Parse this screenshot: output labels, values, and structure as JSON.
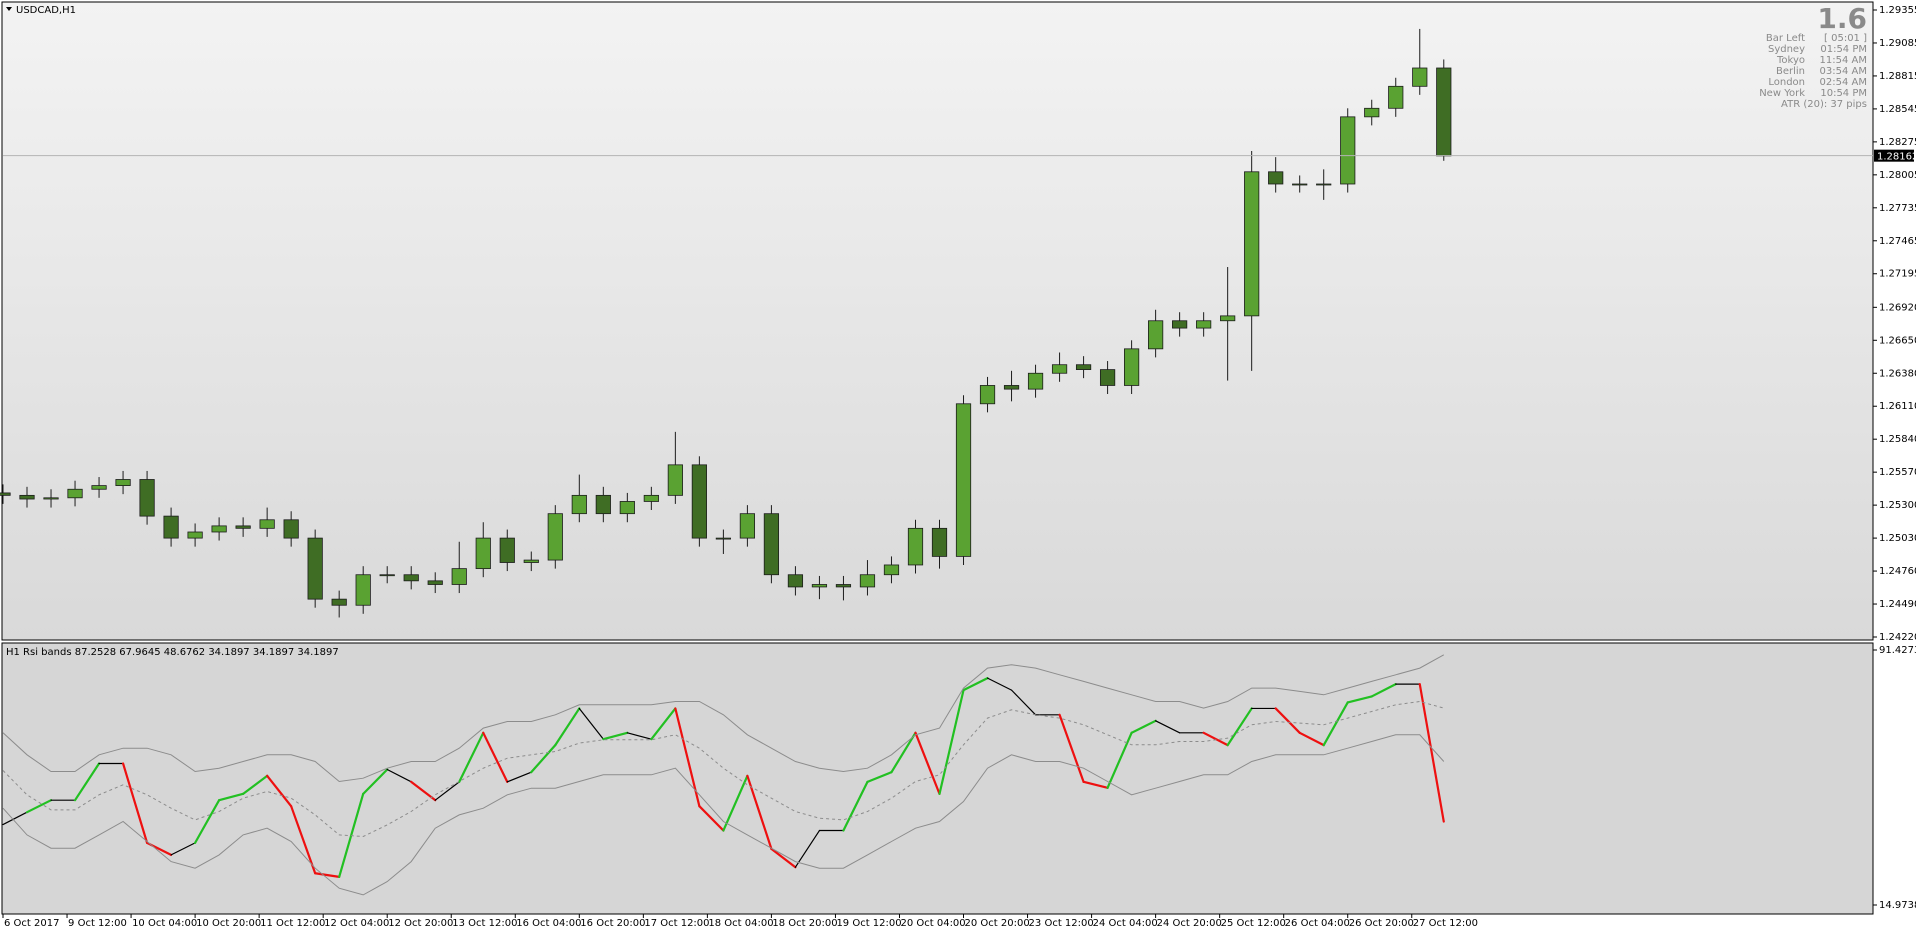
{
  "chart_data": [
    {
      "type": "candlestick",
      "title": "USDCAD,H1",
      "x": [
        0,
        6,
        12,
        18,
        24,
        30,
        36,
        42,
        48,
        54,
        60,
        66,
        72,
        78,
        84,
        90,
        96,
        102,
        108,
        114,
        120,
        126,
        132,
        138,
        144,
        150,
        156,
        162,
        168,
        174,
        180,
        186,
        192,
        198,
        204,
        210,
        216,
        222,
        228,
        234,
        240,
        246,
        252,
        258,
        264,
        270,
        276,
        282,
        288,
        294,
        300,
        306,
        312,
        318,
        324,
        330,
        336,
        342,
        348,
        354,
        360
      ],
      "open": [
        1.254,
        1.2538,
        1.2535,
        1.2536,
        1.2543,
        1.2546,
        1.2551,
        1.2521,
        1.2503,
        1.2508,
        1.2513,
        1.2511,
        1.2518,
        1.2503,
        1.2453,
        1.2448,
        1.2473,
        1.2473,
        1.2468,
        1.2465,
        1.2478,
        1.2503,
        1.2483,
        1.2485,
        1.2523,
        1.2538,
        1.2523,
        1.2533,
        1.2538,
        1.2563,
        1.2503,
        1.2503,
        1.2523,
        1.2473,
        1.2463,
        1.2465,
        1.2463,
        1.2473,
        1.2481,
        1.2511,
        1.2488,
        1.2613,
        1.2628,
        1.2625,
        1.2638,
        1.2645,
        1.2641,
        1.2628,
        1.2658,
        1.2681,
        1.2675,
        1.2681,
        1.2685,
        1.2803,
        1.2793,
        1.2793,
        1.2793,
        1.2848,
        1.2855,
        1.2873,
        1.2888
      ],
      "high": [
        1.2547,
        1.2545,
        1.2543,
        1.255,
        1.2553,
        1.2558,
        1.2558,
        1.2528,
        1.2515,
        1.252,
        1.252,
        1.2528,
        1.2525,
        1.251,
        1.246,
        1.248,
        1.248,
        1.248,
        1.2475,
        1.25,
        1.2516,
        1.251,
        1.2492,
        1.253,
        1.2555,
        1.2545,
        1.254,
        1.2545,
        1.259,
        1.257,
        1.251,
        1.253,
        1.253,
        1.248,
        1.2472,
        1.2472,
        1.2485,
        1.2488,
        1.2518,
        1.2518,
        1.262,
        1.2635,
        1.264,
        1.2645,
        1.2655,
        1.2652,
        1.2648,
        1.2665,
        1.269,
        1.2688,
        1.2688,
        1.2725,
        1.282,
        1.2815,
        1.28,
        1.2805,
        1.2855,
        1.2862,
        1.288,
        1.292,
        1.2895
      ],
      "low": [
        1.2531,
        1.2528,
        1.2528,
        1.2529,
        1.2536,
        1.2539,
        1.2514,
        1.2496,
        1.2496,
        1.2501,
        1.2504,
        1.2504,
        1.2496,
        1.2446,
        1.2438,
        1.2441,
        1.2466,
        1.2461,
        1.2458,
        1.2458,
        1.2471,
        1.2476,
        1.2476,
        1.2478,
        1.2516,
        1.2516,
        1.2516,
        1.2526,
        1.2531,
        1.2496,
        1.249,
        1.2496,
        1.2466,
        1.2456,
        1.2453,
        1.2452,
        1.2456,
        1.2466,
        1.2474,
        1.2478,
        1.2481,
        1.2606,
        1.2615,
        1.2618,
        1.2631,
        1.2634,
        1.2621,
        1.2621,
        1.2651,
        1.2668,
        1.2668,
        1.2632,
        1.264,
        1.2786,
        1.2786,
        1.278,
        1.2786,
        1.2841,
        1.2848,
        1.2866,
        1.2812
      ],
      "close": [
        1.2538,
        1.2535,
        1.2536,
        1.2543,
        1.2546,
        1.2551,
        1.2521,
        1.2503,
        1.2508,
        1.2513,
        1.2511,
        1.2518,
        1.2503,
        1.2453,
        1.2448,
        1.2473,
        1.2473,
        1.2468,
        1.2465,
        1.2478,
        1.2503,
        1.2483,
        1.2485,
        1.2523,
        1.2538,
        1.2523,
        1.2533,
        1.2538,
        1.2563,
        1.2503,
        1.2503,
        1.2523,
        1.2473,
        1.2463,
        1.2465,
        1.2463,
        1.2473,
        1.2481,
        1.2511,
        1.2488,
        1.2613,
        1.2628,
        1.2625,
        1.2638,
        1.2645,
        1.2641,
        1.2628,
        1.2658,
        1.2681,
        1.2675,
        1.2681,
        1.2685,
        1.2803,
        1.2793,
        1.2793,
        1.2793,
        1.2848,
        1.2855,
        1.2873,
        1.2888,
        1.2816
      ],
      "up_color": "#5aa232",
      "down_color": "#3f6d24",
      "wick_color": "#1c1c1c",
      "xlim": [
        0,
        467
      ],
      "xticks": [
        {
          "value": 0,
          "label": "6 Oct 2017"
        },
        {
          "value": 16,
          "label": "9 Oct 12:00"
        },
        {
          "value": 32,
          "label": "10 Oct 04:00"
        },
        {
          "value": 48,
          "label": "10 Oct 20:00"
        },
        {
          "value": 64,
          "label": "11 Oct 12:00"
        },
        {
          "value": 80,
          "label": "12 Oct 04:00"
        },
        {
          "value": 96,
          "label": "12 Oct 20:00"
        },
        {
          "value": 112,
          "label": "13 Oct 12:00"
        },
        {
          "value": 128,
          "label": "16 Oct 04:00"
        },
        {
          "value": 144,
          "label": "16 Oct 20:00"
        },
        {
          "value": 160,
          "label": "17 Oct 12:00"
        },
        {
          "value": 176,
          "label": "18 Oct 04:00"
        },
        {
          "value": 192,
          "label": "18 Oct 20:00"
        },
        {
          "value": 208,
          "label": "19 Oct 12:00"
        },
        {
          "value": 224,
          "label": "20 Oct 04:00"
        },
        {
          "value": 240,
          "label": "20 Oct 20:00"
        },
        {
          "value": 256,
          "label": "23 Oct 12:00"
        },
        {
          "value": 272,
          "label": "24 Oct 04:00"
        },
        {
          "value": 288,
          "label": "24 Oct 20:00"
        },
        {
          "value": 304,
          "label": "25 Oct 12:00"
        },
        {
          "value": 320,
          "label": "26 Oct 04:00"
        },
        {
          "value": 336,
          "label": "26 Oct 20:00"
        },
        {
          "value": 352,
          "label": "27 Oct 12:00"
        }
      ],
      "ylim": [
        1.2422,
        1.29355
      ],
      "yticks": [
        1.29355,
        1.29085,
        1.28815,
        1.28545,
        1.28275,
        1.28005,
        1.27735,
        1.27465,
        1.27195,
        {
          "value": 1.2692,
          "label": "1.26920"
        },
        {
          "value": 1.2665,
          "label": "1.26650"
        },
        {
          "value": 1.2638,
          "label": "1.26380"
        },
        {
          "value": 1.2611,
          "label": "1.26110"
        },
        {
          "value": 1.2584,
          "label": "1.25840"
        },
        {
          "value": 1.2557,
          "label": "1.25570"
        },
        {
          "value": 1.253,
          "label": "1.25300"
        },
        {
          "value": 1.2503,
          "label": "1.25030"
        },
        {
          "value": 1.2476,
          "label": "1.24760"
        },
        {
          "value": 1.2449,
          "label": "1.24490"
        },
        {
          "value": 1.2422,
          "label": "1.24220"
        }
      ],
      "last_price": {
        "value": 1.28162,
        "label": "1.28162"
      },
      "last_price_color": "#b4b4b4"
    },
    {
      "type": "line",
      "title": "H1 Rsi bands 87.2528 67.9645 48.6762 34.1897 34.1897 34.1897",
      "x": [
        0,
        6,
        12,
        18,
        24,
        30,
        36,
        42,
        48,
        54,
        60,
        66,
        72,
        78,
        84,
        90,
        96,
        102,
        108,
        114,
        120,
        126,
        132,
        138,
        144,
        150,
        156,
        162,
        168,
        174,
        180,
        186,
        192,
        198,
        204,
        210,
        216,
        222,
        228,
        234,
        240,
        246,
        252,
        258,
        264,
        270,
        276,
        282,
        288,
        294,
        300,
        306,
        312,
        318,
        324,
        330,
        336,
        342,
        348,
        354,
        360
      ],
      "xlim": [
        0,
        467
      ],
      "ylim": [
        14.9738,
        91.4273
      ],
      "yticks": [
        91.4273,
        14.9738
      ],
      "series": [
        {
          "color": "#000000",
          "rising_color": "#22c022",
          "falling_color": "#ee1010",
          "values": [
            39.1,
            42.8,
            46.4,
            46.4,
            57.4,
            57.4,
            33.6,
            30.0,
            33.6,
            46.4,
            48.3,
            53.7,
            44.6,
            24.5,
            23.4,
            48.3,
            55.6,
            51.9,
            46.4,
            51.9,
            66.6,
            51.9,
            54.8,
            62.9,
            73.9,
            64.7,
            66.6,
            64.7,
            73.9,
            44.6,
            37.3,
            53.7,
            31.8,
            26.3,
            37.3,
            37.3,
            51.9,
            54.8,
            66.6,
            48.3,
            79.4,
            83.0,
            79.4,
            72.0,
            72.0,
            51.9,
            50.1,
            66.6,
            70.2,
            66.6,
            66.6,
            62.9,
            73.9,
            73.9,
            66.6,
            62.9,
            75.7,
            77.5,
            81.2,
            81.2,
            40.0
          ]
        },
        {
          "color": "#8c8c8c",
          "values": [
            66.6,
            60,
            55,
            55,
            60,
            62,
            62,
            60,
            55,
            56,
            58,
            60,
            60,
            58,
            52,
            53,
            56,
            58,
            58,
            62,
            68,
            70,
            70,
            72,
            75,
            75,
            75,
            75,
            76,
            76,
            72,
            66,
            62,
            58,
            56,
            55,
            56,
            60,
            66,
            68,
            80,
            86,
            87,
            86,
            84,
            82,
            80,
            78,
            76,
            76,
            74,
            76,
            80,
            80,
            79,
            78,
            80,
            82,
            84,
            86,
            90
          ]
        },
        {
          "color": "#8c8c8c",
          "dashed": true,
          "values": [
            55.3,
            48,
            43.5,
            43.5,
            48,
            51,
            48,
            44,
            40.5,
            43,
            47,
            49,
            47,
            42,
            36,
            35.5,
            39,
            43,
            48,
            52,
            56,
            59,
            60,
            61,
            63.5,
            64.5,
            64.5,
            64.5,
            66,
            62,
            56,
            51,
            47,
            43,
            41,
            40.5,
            43,
            47,
            52,
            54,
            63,
            71,
            73.5,
            72,
            71,
            69,
            66,
            63,
            63,
            64,
            64,
            65,
            69,
            70,
            69.5,
            69,
            71,
            73,
            75,
            76,
            74
          ]
        },
        {
          "color": "#8c8c8c",
          "values": [
            44,
            36,
            32,
            32,
            36,
            40,
            34,
            28,
            26,
            30,
            36,
            38,
            34,
            26,
            20,
            18,
            22,
            28,
            38,
            42,
            44,
            48,
            50,
            50,
            52,
            54,
            54,
            54,
            56,
            48,
            40,
            36,
            32,
            28,
            26,
            26,
            30,
            34,
            38,
            40,
            46,
            56,
            60,
            58,
            58,
            56,
            52,
            48,
            50,
            52,
            54,
            54,
            58,
            60,
            60,
            60,
            62,
            64,
            66,
            66,
            58
          ]
        }
      ]
    }
  ],
  "info_panel": {
    "spread": "1.6",
    "rows": [
      [
        "Bar Left",
        "[ 05:01 ]"
      ],
      [
        "Sydney",
        "01:54 PM"
      ],
      [
        "Tokyo",
        "11:54 AM"
      ],
      [
        "Berlin",
        "03:54 AM"
      ],
      [
        "London",
        "02:54 AM"
      ],
      [
        "New York",
        "10:54 PM"
      ]
    ],
    "atr": "ATR (20): 37 pips"
  }
}
